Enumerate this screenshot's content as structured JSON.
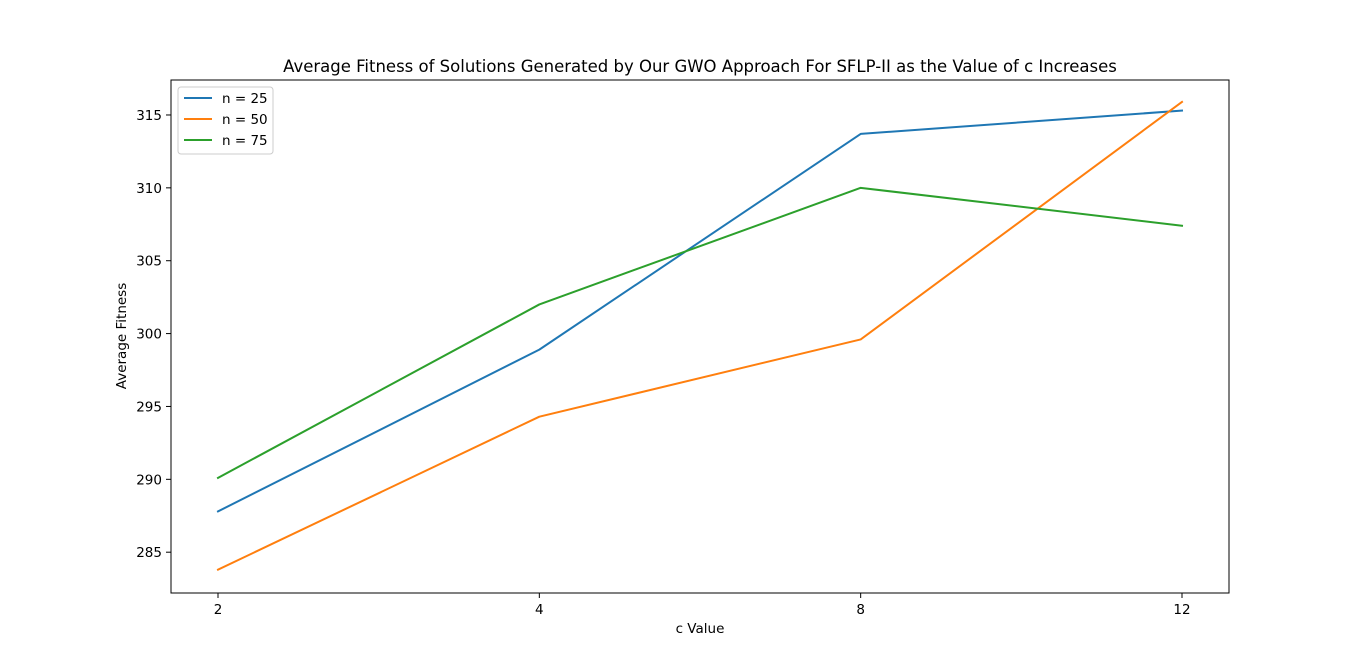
{
  "chart_data": {
    "type": "line",
    "title": "Average Fitness of Solutions Generated by Our GWO Approach For SFLP-II as the Value of c Increases",
    "xlabel": "c Value",
    "ylabel": "Average Fitness",
    "categories": [
      "2",
      "4",
      "8",
      "12"
    ],
    "y_ticks": [
      "285",
      "290",
      "295",
      "300",
      "305",
      "310",
      "315"
    ],
    "ylim": [
      282.2,
      317.4
    ],
    "grid": false,
    "legend_position": "upper-left",
    "series": [
      {
        "name": "n = 25",
        "color": "#1f77b4",
        "values": [
          287.8,
          298.9,
          313.7,
          315.3
        ]
      },
      {
        "name": "n = 50",
        "color": "#ff7f0e",
        "values": [
          283.8,
          294.3,
          299.6,
          315.9
        ]
      },
      {
        "name": "n = 75",
        "color": "#2ca02c",
        "values": [
          290.1,
          302.0,
          310.0,
          307.4
        ]
      }
    ]
  }
}
